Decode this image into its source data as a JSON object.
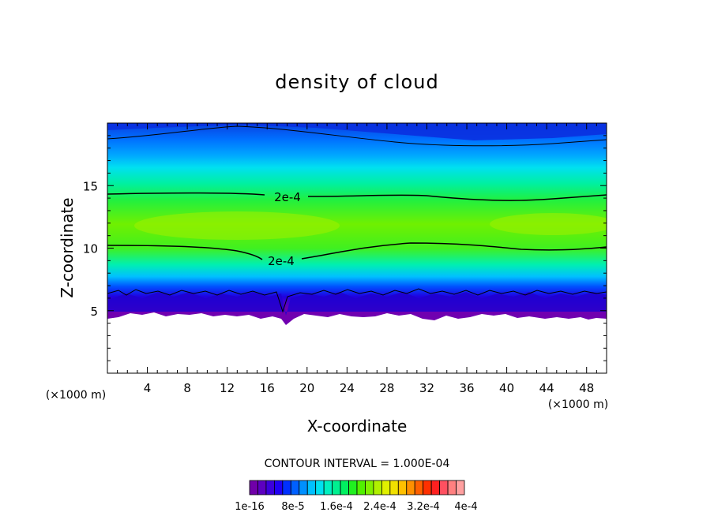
{
  "chart_data": {
    "type": "heatmap",
    "title": "density of cloud",
    "xlabel": "X-coordinate",
    "ylabel": "Z-coordinate",
    "x_unit": "(×1000 m)",
    "z_unit": "(×1000 m)",
    "xlim": [
      0,
      50
    ],
    "ylim": [
      0,
      20
    ],
    "x_ticks": [
      4,
      8,
      12,
      16,
      20,
      24,
      28,
      32,
      36,
      40,
      44,
      48
    ],
    "y_ticks": [
      5,
      10,
      15
    ],
    "contour_interval_label": "CONTOUR INTERVAL = 1.000E-04",
    "contour_labels": [
      {
        "text": "2e-4",
        "x": 18,
        "z": 14.0
      },
      {
        "text": "2e-4",
        "x": 17.5,
        "z": 8.8
      }
    ],
    "colorbar_tick_labels": [
      "1e-16",
      "8e-5",
      "1.6e-4",
      "2.4e-4",
      "3.2e-4",
      "4e-4"
    ],
    "colorbar_colors": [
      "#7000a8",
      "#5c00c0",
      "#3c00dc",
      "#2000f4",
      "#0030ff",
      "#0060ff",
      "#0090ff",
      "#00c0ff",
      "#00e0f0",
      "#00f0c0",
      "#00f090",
      "#00f060",
      "#20f020",
      "#50f000",
      "#80f000",
      "#b0f000",
      "#e0f000",
      "#f0e000",
      "#ffc000",
      "#ff9000",
      "#ff6000",
      "#ff3000",
      "#ff2020",
      "#ff5060",
      "#ff8080",
      "#ffa0a0"
    ]
  }
}
